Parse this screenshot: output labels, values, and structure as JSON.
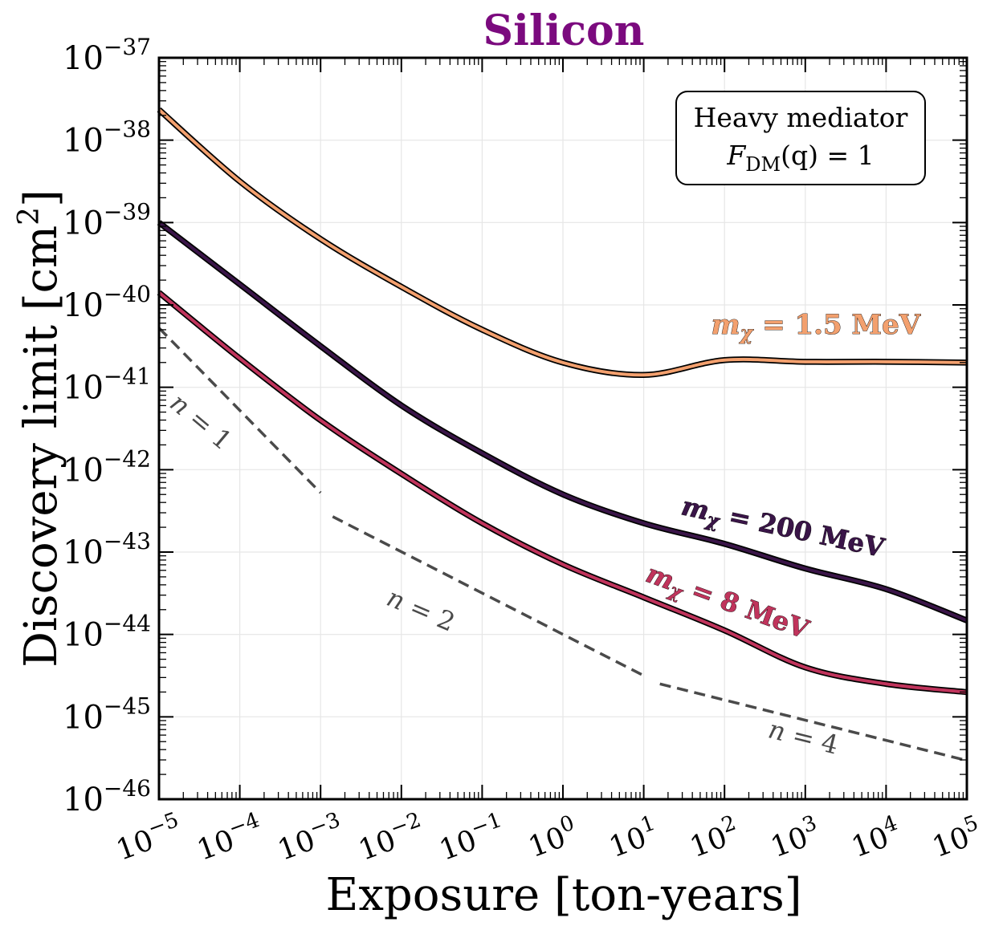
{
  "chart_data": {
    "type": "line",
    "title": "Silicon",
    "title_color": "#7b0a7e",
    "xlabel": "Exposure [ton-years]",
    "ylabel": "Discovery limit [cm",
    "ylabel_sup": "2",
    "ylabel_close": "]",
    "x_scale": "log",
    "y_scale": "log",
    "xlim": [
      1e-05,
      100000.0
    ],
    "ylim": [
      1e-46,
      1e-37
    ],
    "grid": true,
    "x_ticks": [
      {
        "base": "10",
        "exp": "−5",
        "value": -5
      },
      {
        "base": "10",
        "exp": "−4",
        "value": -4
      },
      {
        "base": "10",
        "exp": "−3",
        "value": -3
      },
      {
        "base": "10",
        "exp": "−2",
        "value": -2
      },
      {
        "base": "10",
        "exp": "−1",
        "value": -1
      },
      {
        "base": "10",
        "exp": "0",
        "value": 0
      },
      {
        "base": "10",
        "exp": "1",
        "value": 1
      },
      {
        "base": "10",
        "exp": "2",
        "value": 2
      },
      {
        "base": "10",
        "exp": "3",
        "value": 3
      },
      {
        "base": "10",
        "exp": "4",
        "value": 4
      },
      {
        "base": "10",
        "exp": "5",
        "value": 5
      }
    ],
    "y_ticks": [
      {
        "base": "10",
        "exp": "−37",
        "value": -37
      },
      {
        "base": "10",
        "exp": "−38",
        "value": -38
      },
      {
        "base": "10",
        "exp": "−39",
        "value": -39
      },
      {
        "base": "10",
        "exp": "−40",
        "value": -40
      },
      {
        "base": "10",
        "exp": "−41",
        "value": -41
      },
      {
        "base": "10",
        "exp": "−42",
        "value": -42
      },
      {
        "base": "10",
        "exp": "−43",
        "value": -43
      },
      {
        "base": "10",
        "exp": "−44",
        "value": -44
      },
      {
        "base": "10",
        "exp": "−45",
        "value": -45
      },
      {
        "base": "10",
        "exp": "−46",
        "value": -46
      }
    ],
    "legend_box": {
      "line1": "Heavy mediator",
      "line2_main": "F",
      "line2_sub": "DM",
      "line2_rest": "(q) = 1",
      "placement": "top-right"
    },
    "series": [
      {
        "name": "m_chi = 1.5 MeV",
        "label_main": "m",
        "label_sub": "χ",
        "label_rest": " = 1.5 MeV",
        "color": "#f3a06e",
        "style": "solid",
        "points": [
          [
            -5,
            -37.63
          ],
          [
            -4,
            -38.5
          ],
          [
            -3,
            -39.2
          ],
          [
            -2,
            -39.78
          ],
          [
            -1,
            -40.3
          ],
          [
            0,
            -40.7
          ],
          [
            1,
            -40.85
          ],
          [
            2,
            -40.67
          ],
          [
            3,
            -40.69
          ],
          [
            4,
            -40.69
          ],
          [
            5,
            -40.7
          ]
        ]
      },
      {
        "name": "m_chi = 200 MeV",
        "label_main": "m",
        "label_sub": "χ",
        "label_rest": " = 200 MeV",
        "color": "#3a1548",
        "style": "solid",
        "points": [
          [
            -5,
            -39.0
          ],
          [
            -4,
            -39.75
          ],
          [
            -3,
            -40.5
          ],
          [
            -2,
            -41.22
          ],
          [
            -1,
            -41.8
          ],
          [
            0,
            -42.3
          ],
          [
            1,
            -42.65
          ],
          [
            2,
            -42.9
          ],
          [
            3,
            -43.2
          ],
          [
            4,
            -43.45
          ],
          [
            5,
            -43.83
          ]
        ]
      },
      {
        "name": "m_chi = 8 MeV",
        "label_main": "m",
        "label_sub": "χ",
        "label_rest": " = 8 MeV",
        "color": "#c0345c",
        "style": "solid",
        "points": [
          [
            -5,
            -39.85
          ],
          [
            -4,
            -40.65
          ],
          [
            -3,
            -41.4
          ],
          [
            -2,
            -42.05
          ],
          [
            -1,
            -42.65
          ],
          [
            0,
            -43.15
          ],
          [
            1,
            -43.55
          ],
          [
            2,
            -43.95
          ],
          [
            3,
            -44.4
          ],
          [
            4,
            -44.6
          ],
          [
            5,
            -44.7
          ]
        ]
      }
    ],
    "reference_lines": [
      {
        "label_main": "n",
        "label_rest": " = 1",
        "color": "#4a4a4a",
        "style": "dashed",
        "points": [
          [
            -5,
            -40.28
          ],
          [
            -3,
            -42.28
          ]
        ]
      },
      {
        "label_main": "n",
        "label_rest": " = 2",
        "color": "#4a4a4a",
        "style": "dashed",
        "points": [
          [
            -2.85,
            -42.57
          ],
          [
            1,
            -44.5
          ]
        ]
      },
      {
        "label_main": "n",
        "label_rest": " = 4",
        "color": "#4a4a4a",
        "style": "dashed",
        "points": [
          [
            1.2,
            -44.6
          ],
          [
            5,
            -45.53
          ]
        ]
      }
    ]
  }
}
